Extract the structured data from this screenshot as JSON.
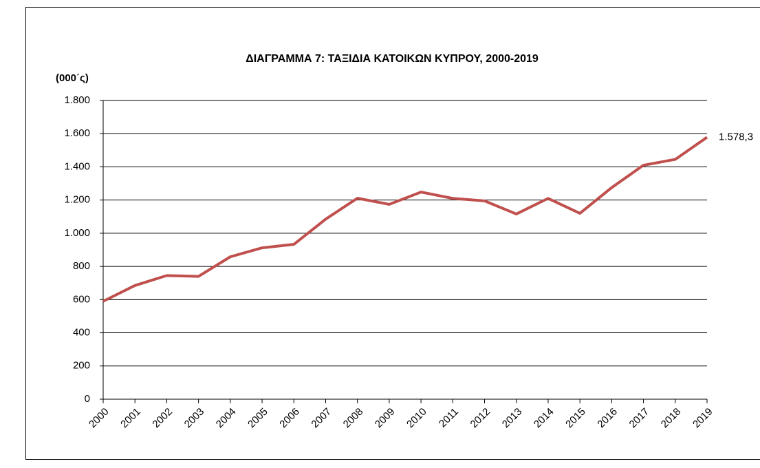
{
  "chart_data": {
    "type": "line",
    "title": "ΔΙΑΓΡΑΜΜΑ 7: ΤΑΞΙΔΙΑ ΚΑΤΟΙΚΩΝ ΚΥΠΡΟΥ, 2000-2019",
    "y_axis_label": "(000΄ς)",
    "categories": [
      "2000",
      "2001",
      "2002",
      "2003",
      "2004",
      "2005",
      "2006",
      "2007",
      "2008",
      "2009",
      "2010",
      "2011",
      "2012",
      "2013",
      "2014",
      "2015",
      "2016",
      "2017",
      "2018",
      "2019"
    ],
    "series": [
      {
        "name": "Ταξίδια",
        "color": "#c0504d",
        "values": [
          590,
          685,
          745,
          740,
          858,
          912,
          933,
          1085,
          1211,
          1174,
          1248,
          1210,
          1195,
          1116,
          1210,
          1120,
          1275,
          1410,
          1445,
          1578.3
        ],
        "value_labels": [
          null,
          null,
          null,
          null,
          null,
          null,
          null,
          null,
          null,
          null,
          null,
          null,
          null,
          null,
          null,
          null,
          null,
          null,
          null,
          "1.578,3"
        ]
      }
    ],
    "ylim": [
      0,
      1800
    ],
    "yticks": [
      0,
      200,
      400,
      600,
      800,
      {
        "value": 1000,
        "label": "1.000"
      },
      {
        "value": 1200,
        "label": "1.200"
      },
      {
        "value": 1400,
        "label": "1.400"
      },
      {
        "value": 1600,
        "label": "1.600"
      },
      {
        "value": 1800,
        "label": "1.800"
      }
    ],
    "grid": true
  }
}
